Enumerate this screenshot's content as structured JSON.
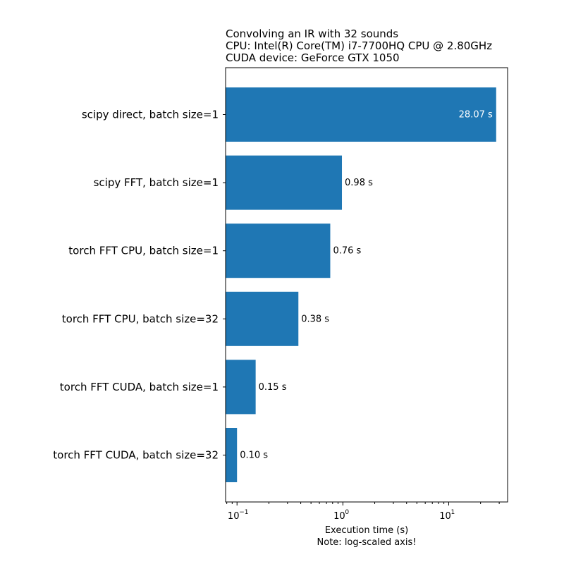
{
  "chart_data": {
    "type": "bar",
    "orientation": "horizontal",
    "title_lines": [
      "Convolving an IR with 32 sounds",
      "CPU: Intel(R) Core(TM) i7-7700HQ CPU @ 2.80GHz",
      "CUDA device: GeForce GTX 1050"
    ],
    "categories": [
      "scipy direct, batch size=1",
      "scipy FFT, batch size=1",
      "torch FFT CPU, batch size=1",
      "torch FFT CPU, batch size=32",
      "torch FFT CUDA, batch size=1",
      "torch FFT CUDA, batch size=32"
    ],
    "values": [
      28.07,
      0.98,
      0.76,
      0.38,
      0.15,
      0.1
    ],
    "data_labels": [
      "28.07 s",
      "0.98 s",
      "0.76 s",
      "0.38 s",
      "0.15 s",
      "0.10 s"
    ],
    "xlabel_lines": [
      "Execution time (s)",
      "Note: log-scaled axis!"
    ],
    "x_scale": "log",
    "xlim": [
      0.078,
      36
    ],
    "x_ticks": [
      {
        "value": 0.1,
        "base": "10",
        "exp": "−1"
      },
      {
        "value": 1,
        "base": "10",
        "exp": "0"
      },
      {
        "value": 10,
        "base": "10",
        "exp": "1"
      }
    ],
    "bar_color": "#1f77b4",
    "grid": false
  }
}
